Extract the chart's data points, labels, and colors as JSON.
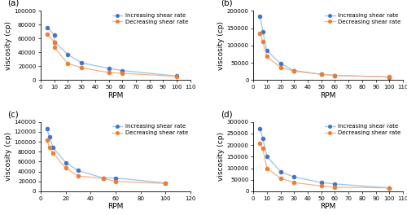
{
  "panels": [
    {
      "label": "(a)",
      "increasing_x": [
        5,
        10,
        10,
        20,
        30,
        50,
        60,
        100
      ],
      "increasing_y": [
        76000,
        65000,
        55000,
        37000,
        25000,
        17000,
        14000,
        6000
      ],
      "decreasing_x": [
        5,
        10,
        10,
        20,
        30,
        50,
        60,
        100
      ],
      "decreasing_y": [
        66000,
        55000,
        47000,
        24000,
        18000,
        11000,
        10000,
        5500
      ],
      "ylim": [
        0,
        100000
      ],
      "yticks": [
        0,
        20000,
        40000,
        60000,
        80000,
        100000
      ],
      "ytick_labels": [
        "0",
        "20000",
        "40000",
        "60000",
        "80000",
        "100000"
      ],
      "xlim": [
        0,
        110
      ],
      "xticks": [
        0,
        10,
        20,
        30,
        40,
        50,
        60,
        70,
        80,
        90,
        100,
        110
      ]
    },
    {
      "label": "(b)",
      "increasing_x": [
        5,
        7,
        10,
        20,
        30,
        50,
        60,
        100
      ],
      "increasing_y": [
        185000,
        140000,
        85000,
        48000,
        28000,
        17000,
        14000,
        9000
      ],
      "decreasing_x": [
        5,
        7,
        10,
        20,
        30,
        50,
        60,
        100
      ],
      "decreasing_y": [
        135000,
        112000,
        68000,
        37000,
        26000,
        17000,
        14000,
        9500
      ],
      "ylim": [
        0,
        200000
      ],
      "yticks": [
        0,
        50000,
        100000,
        150000,
        200000
      ],
      "ytick_labels": [
        "0",
        "50000",
        "100000",
        "150000",
        "200000"
      ],
      "xlim": [
        0,
        110
      ],
      "xticks": [
        0,
        10,
        20,
        30,
        40,
        50,
        60,
        70,
        80,
        90,
        100,
        110
      ]
    },
    {
      "label": "(c)",
      "increasing_x": [
        5,
        7,
        10,
        20,
        30,
        50,
        60,
        100
      ],
      "increasing_y": [
        126000,
        110000,
        88000,
        58000,
        42000,
        27000,
        27000,
        17000
      ],
      "decreasing_x": [
        5,
        7,
        10,
        20,
        30,
        50,
        60,
        100
      ],
      "decreasing_y": [
        103000,
        88000,
        77000,
        47000,
        31000,
        26000,
        20000,
        16000
      ],
      "ylim": [
        0,
        140000
      ],
      "yticks": [
        0,
        20000,
        40000,
        60000,
        80000,
        100000,
        120000,
        140000
      ],
      "ytick_labels": [
        "0",
        "20000",
        "40000",
        "60000",
        "80000",
        "100000",
        "120000",
        "140000"
      ],
      "xlim": [
        0,
        120
      ],
      "xticks": [
        0,
        20,
        40,
        60,
        80,
        100,
        120
      ]
    },
    {
      "label": "(d)",
      "increasing_x": [
        5,
        7,
        10,
        20,
        30,
        50,
        60,
        100
      ],
      "increasing_y": [
        272000,
        228000,
        152000,
        85000,
        62000,
        38000,
        32000,
        15000
      ],
      "decreasing_x": [
        5,
        7,
        10,
        20,
        30,
        50,
        60,
        100
      ],
      "decreasing_y": [
        207000,
        185000,
        100000,
        57000,
        38000,
        23000,
        18000,
        15000
      ],
      "ylim": [
        0,
        300000
      ],
      "yticks": [
        0,
        50000,
        100000,
        150000,
        200000,
        250000,
        300000
      ],
      "ytick_labels": [
        "0",
        "50000",
        "100000",
        "150000",
        "200000",
        "250000",
        "300000"
      ],
      "xlim": [
        0,
        110
      ],
      "xticks": [
        0,
        10,
        20,
        30,
        40,
        50,
        60,
        70,
        80,
        90,
        100,
        110
      ]
    }
  ],
  "increasing_color": "#4472c4",
  "decreasing_color": "#ed7d31",
  "line_color_inc": "#9dc3e6",
  "line_color_dec": "#f4b183",
  "marker_size": 3.5,
  "ylabel": "viscosity (cp)",
  "xlabel": "RPM",
  "legend_inc": "Increasing shear rate",
  "legend_dec": "Decreasing shear rate",
  "bg_color": "#ffffff",
  "fontsize": 6.5
}
